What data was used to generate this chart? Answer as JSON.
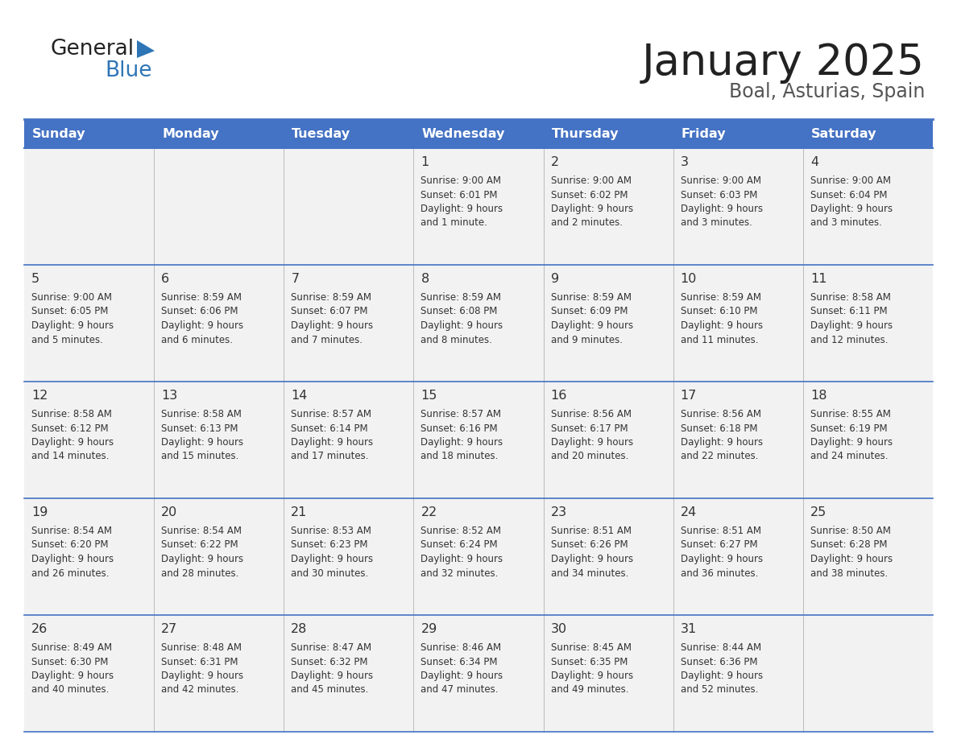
{
  "title": "January 2025",
  "subtitle": "Boal, Asturias, Spain",
  "header_color": "#4472C4",
  "header_text_color": "#FFFFFF",
  "cell_bg_color": "#F2F2F2",
  "border_color": "#4472C4",
  "text_color": "#333333",
  "days_of_week": [
    "Sunday",
    "Monday",
    "Tuesday",
    "Wednesday",
    "Thursday",
    "Friday",
    "Saturday"
  ],
  "calendar": [
    [
      {
        "day": "",
        "sunrise": "",
        "sunset": "",
        "daylight": ""
      },
      {
        "day": "",
        "sunrise": "",
        "sunset": "",
        "daylight": ""
      },
      {
        "day": "",
        "sunrise": "",
        "sunset": "",
        "daylight": ""
      },
      {
        "day": "1",
        "sunrise": "9:00 AM",
        "sunset": "6:01 PM",
        "daylight": "9 hours and 1 minute."
      },
      {
        "day": "2",
        "sunrise": "9:00 AM",
        "sunset": "6:02 PM",
        "daylight": "9 hours and 2 minutes."
      },
      {
        "day": "3",
        "sunrise": "9:00 AM",
        "sunset": "6:03 PM",
        "daylight": "9 hours and 3 minutes."
      },
      {
        "day": "4",
        "sunrise": "9:00 AM",
        "sunset": "6:04 PM",
        "daylight": "9 hours and 3 minutes."
      }
    ],
    [
      {
        "day": "5",
        "sunrise": "9:00 AM",
        "sunset": "6:05 PM",
        "daylight": "9 hours and 5 minutes."
      },
      {
        "day": "6",
        "sunrise": "8:59 AM",
        "sunset": "6:06 PM",
        "daylight": "9 hours and 6 minutes."
      },
      {
        "day": "7",
        "sunrise": "8:59 AM",
        "sunset": "6:07 PM",
        "daylight": "9 hours and 7 minutes."
      },
      {
        "day": "8",
        "sunrise": "8:59 AM",
        "sunset": "6:08 PM",
        "daylight": "9 hours and 8 minutes."
      },
      {
        "day": "9",
        "sunrise": "8:59 AM",
        "sunset": "6:09 PM",
        "daylight": "9 hours and 9 minutes."
      },
      {
        "day": "10",
        "sunrise": "8:59 AM",
        "sunset": "6:10 PM",
        "daylight": "9 hours and 11 minutes."
      },
      {
        "day": "11",
        "sunrise": "8:58 AM",
        "sunset": "6:11 PM",
        "daylight": "9 hours and 12 minutes."
      }
    ],
    [
      {
        "day": "12",
        "sunrise": "8:58 AM",
        "sunset": "6:12 PM",
        "daylight": "9 hours and 14 minutes."
      },
      {
        "day": "13",
        "sunrise": "8:58 AM",
        "sunset": "6:13 PM",
        "daylight": "9 hours and 15 minutes."
      },
      {
        "day": "14",
        "sunrise": "8:57 AM",
        "sunset": "6:14 PM",
        "daylight": "9 hours and 17 minutes."
      },
      {
        "day": "15",
        "sunrise": "8:57 AM",
        "sunset": "6:16 PM",
        "daylight": "9 hours and 18 minutes."
      },
      {
        "day": "16",
        "sunrise": "8:56 AM",
        "sunset": "6:17 PM",
        "daylight": "9 hours and 20 minutes."
      },
      {
        "day": "17",
        "sunrise": "8:56 AM",
        "sunset": "6:18 PM",
        "daylight": "9 hours and 22 minutes."
      },
      {
        "day": "18",
        "sunrise": "8:55 AM",
        "sunset": "6:19 PM",
        "daylight": "9 hours and 24 minutes."
      }
    ],
    [
      {
        "day": "19",
        "sunrise": "8:54 AM",
        "sunset": "6:20 PM",
        "daylight": "9 hours and 26 minutes."
      },
      {
        "day": "20",
        "sunrise": "8:54 AM",
        "sunset": "6:22 PM",
        "daylight": "9 hours and 28 minutes."
      },
      {
        "day": "21",
        "sunrise": "8:53 AM",
        "sunset": "6:23 PM",
        "daylight": "9 hours and 30 minutes."
      },
      {
        "day": "22",
        "sunrise": "8:52 AM",
        "sunset": "6:24 PM",
        "daylight": "9 hours and 32 minutes."
      },
      {
        "day": "23",
        "sunrise": "8:51 AM",
        "sunset": "6:26 PM",
        "daylight": "9 hours and 34 minutes."
      },
      {
        "day": "24",
        "sunrise": "8:51 AM",
        "sunset": "6:27 PM",
        "daylight": "9 hours and 36 minutes."
      },
      {
        "day": "25",
        "sunrise": "8:50 AM",
        "sunset": "6:28 PM",
        "daylight": "9 hours and 38 minutes."
      }
    ],
    [
      {
        "day": "26",
        "sunrise": "8:49 AM",
        "sunset": "6:30 PM",
        "daylight": "9 hours and 40 minutes."
      },
      {
        "day": "27",
        "sunrise": "8:48 AM",
        "sunset": "6:31 PM",
        "daylight": "9 hours and 42 minutes."
      },
      {
        "day": "28",
        "sunrise": "8:47 AM",
        "sunset": "6:32 PM",
        "daylight": "9 hours and 45 minutes."
      },
      {
        "day": "29",
        "sunrise": "8:46 AM",
        "sunset": "6:34 PM",
        "daylight": "9 hours and 47 minutes."
      },
      {
        "day": "30",
        "sunrise": "8:45 AM",
        "sunset": "6:35 PM",
        "daylight": "9 hours and 49 minutes."
      },
      {
        "day": "31",
        "sunrise": "8:44 AM",
        "sunset": "6:36 PM",
        "daylight": "9 hours and 52 minutes."
      },
      {
        "day": "",
        "sunrise": "",
        "sunset": "",
        "daylight": ""
      }
    ]
  ]
}
